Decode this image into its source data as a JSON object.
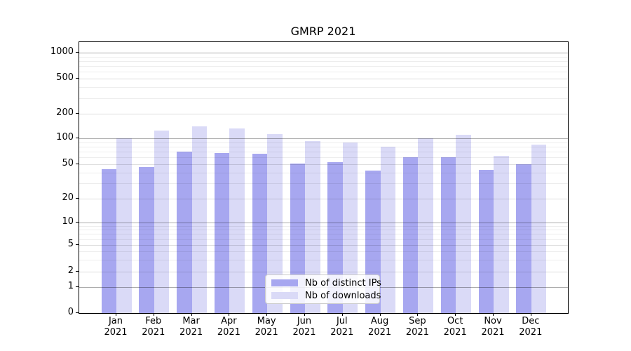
{
  "figure": {
    "title": "GMRP 2021"
  },
  "chart_data": {
    "type": "bar",
    "title": "GMRP 2021",
    "categories": [
      "Jan 2021",
      "Feb 2021",
      "Mar 2021",
      "Apr 2021",
      "May 2021",
      "Jun 2021",
      "Jul 2021",
      "Aug 2021",
      "Sep 2021",
      "Oct 2021",
      "Nov 2021",
      "Dec 2021"
    ],
    "series": [
      {
        "name": "Nb of distinct IPs",
        "color": "#a7a7f0",
        "values": [
          44,
          46,
          70,
          68,
          66,
          51,
          53,
          42,
          60,
          60,
          43,
          50
        ]
      },
      {
        "name": "Nb of downloads",
        "color": "#dadaf7",
        "values": [
          101,
          123,
          140,
          131,
          113,
          92,
          90,
          80,
          100,
          111,
          63,
          84
        ]
      }
    ],
    "ylabel": "",
    "xlabel": "",
    "yscale": "log-like",
    "ytick_values": [
      1000,
      500,
      200,
      100,
      50,
      20,
      10,
      5,
      2,
      1,
      0
    ],
    "ytick_labels": [
      "1000",
      "500",
      "200",
      "100",
      "50",
      "20",
      "10",
      "5",
      "2",
      "1",
      "0"
    ],
    "ylim": [
      0,
      1400
    ],
    "grid": true,
    "legend_position": "lower center"
  },
  "legend": {
    "items": [
      {
        "label": "Nb of distinct IPs",
        "color": "#a7a7f0"
      },
      {
        "label": "Nb of downloads",
        "color": "#dadaf7"
      }
    ]
  }
}
